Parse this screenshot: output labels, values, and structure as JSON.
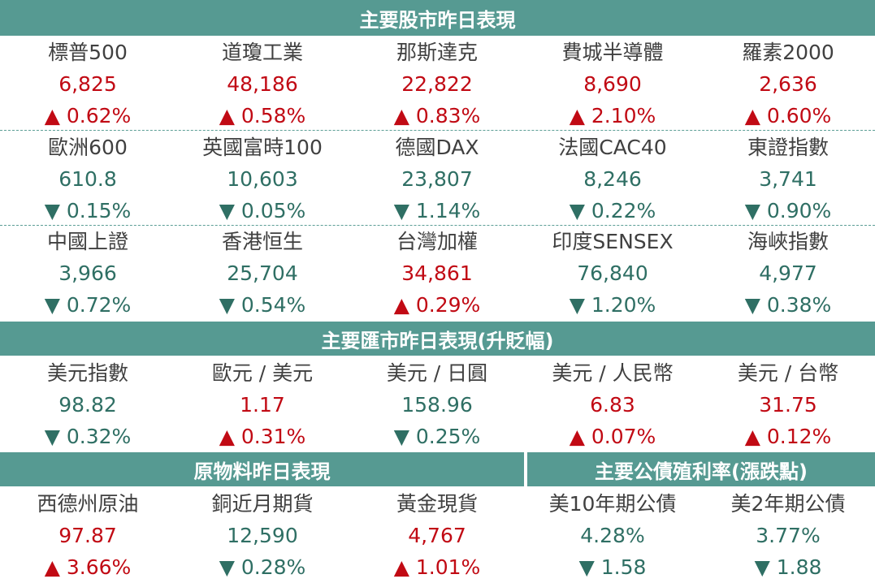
{
  "stocks": {
    "title": "主要股市昨日表現",
    "rows": [
      [
        {
          "name": "標普500",
          "value": "6,825",
          "change": "▲ 0.62%",
          "dir": "up"
        },
        {
          "name": "道瓊工業",
          "value": "48,186",
          "change": "▲ 0.58%",
          "dir": "up"
        },
        {
          "name": "那斯達克",
          "value": "22,822",
          "change": "▲ 0.83%",
          "dir": "up"
        },
        {
          "name": "費城半導體",
          "value": "8,690",
          "change": "▲ 2.10%",
          "dir": "up"
        },
        {
          "name": "羅素2000",
          "value": "2,636",
          "change": "▲ 0.60%",
          "dir": "up"
        }
      ],
      [
        {
          "name": "歐洲600",
          "value": "610.8",
          "change": "▼ 0.15%",
          "dir": "down"
        },
        {
          "name": "英國富時100",
          "value": "10,603",
          "change": "▼ 0.05%",
          "dir": "down"
        },
        {
          "name": "德國DAX",
          "value": "23,807",
          "change": "▼ 1.14%",
          "dir": "down"
        },
        {
          "name": "法國CAC40",
          "value": "8,246",
          "change": "▼ 0.22%",
          "dir": "down"
        },
        {
          "name": "東證指數",
          "value": "3,741",
          "change": "▼ 0.90%",
          "dir": "down"
        }
      ],
      [
        {
          "name": "中國上證",
          "value": "3,966",
          "change": "▼ 0.72%",
          "dir": "down"
        },
        {
          "name": "香港恒生",
          "value": "25,704",
          "change": "▼ 0.54%",
          "dir": "down"
        },
        {
          "name": "台灣加權",
          "value": "34,861",
          "change": "▲ 0.29%",
          "dir": "up"
        },
        {
          "name": "印度SENSEX",
          "value": "76,840",
          "change": "▼ 1.20%",
          "dir": "down"
        },
        {
          "name": "海峽指數",
          "value": "4,977",
          "change": "▼ 0.38%",
          "dir": "down"
        }
      ]
    ]
  },
  "fx": {
    "title": "主要匯市昨日表現(升貶幅)",
    "items": [
      {
        "name": "美元指數",
        "value": "98.82",
        "change": "▼ 0.32%",
        "dir": "down"
      },
      {
        "name": "歐元 / 美元",
        "value": "1.17",
        "change": "▲ 0.31%",
        "dir": "up"
      },
      {
        "name": "美元 / 日圓",
        "value": "158.96",
        "change": "▼ 0.25%",
        "dir": "down"
      },
      {
        "name": "美元 / 人民幣",
        "value": "6.83",
        "change": "▲ 0.07%",
        "dir": "up"
      },
      {
        "name": "美元 / 台幣",
        "value": "31.75",
        "change": "▲ 0.12%",
        "dir": "up"
      }
    ]
  },
  "commodities": {
    "title": "原物料昨日表現",
    "items": [
      {
        "name": "西德州原油",
        "value": "97.87",
        "change": "▲ 3.66%",
        "dir": "up"
      },
      {
        "name": "銅近月期貨",
        "value": "12,590",
        "change": "▼ 0.28%",
        "dir": "down"
      },
      {
        "name": "黃金現貨",
        "value": "4,767",
        "change": "▲ 1.01%",
        "dir": "up"
      }
    ]
  },
  "bonds": {
    "title": "主要公債殖利率(漲跌點)",
    "items": [
      {
        "name": "美10年期公債",
        "value": "4.28%",
        "change": "▼ 1.58",
        "dir": "down"
      },
      {
        "name": "美2年期公債",
        "value": "3.77%",
        "change": "▼ 1.88",
        "dir": "down"
      }
    ]
  },
  "colors": {
    "band": "#569a92",
    "up": "#c10a14",
    "down": "#2f6f64",
    "label": "#404040"
  }
}
